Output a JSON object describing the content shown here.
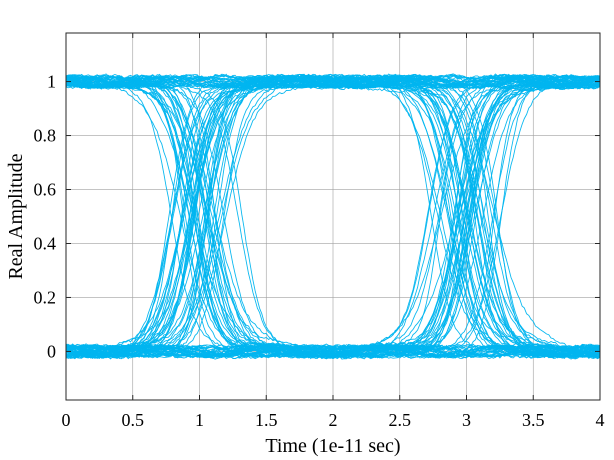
{
  "chart_data": {
    "type": "line",
    "title": "",
    "xlabel": "Time (1e-11 sec)",
    "ylabel": "Real Amplitude",
    "xlim": [
      0,
      4
    ],
    "ylim": [
      -0.18,
      1.18
    ],
    "x_ticks": [
      0,
      0.5,
      1,
      1.5,
      2,
      2.5,
      3,
      3.5,
      4
    ],
    "x_tick_labels": [
      "0",
      "0.5",
      "1",
      "1.5",
      "2",
      "2.5",
      "3",
      "3.5",
      "4"
    ],
    "y_ticks": [
      0,
      0.2,
      0.4,
      0.6,
      0.8,
      1
    ],
    "y_tick_labels": [
      "0",
      "0.2",
      "0.4",
      "0.6",
      "0.8",
      "1"
    ],
    "grid": true,
    "legend": "none",
    "trace_color": "#00b5ef",
    "logic_levels": [
      0,
      1
    ],
    "unit_interval": 2,
    "crossing_centers": [
      1,
      3
    ],
    "crossing_spread": 0.65,
    "trace_count": 120
  }
}
